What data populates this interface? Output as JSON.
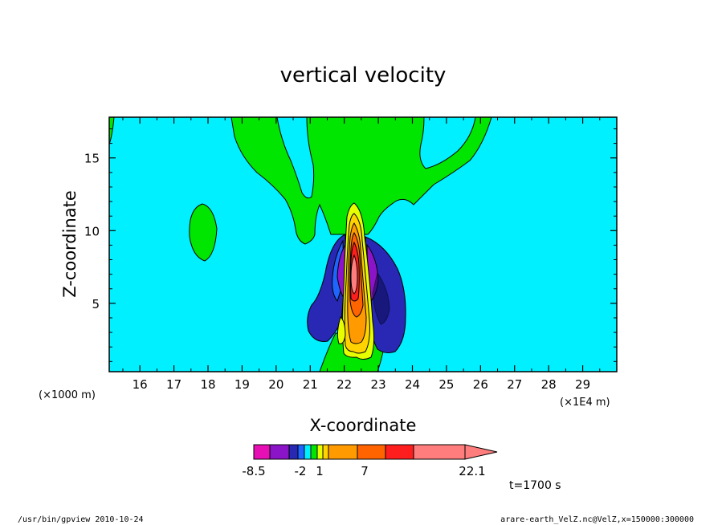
{
  "chart_data": {
    "type": "heatmap",
    "title": "vertical velocity",
    "xlabel": "X-coordinate",
    "ylabel": "Z-coordinate",
    "x_unit_left": "(×1000 m)",
    "x_unit_right": "(×1E4 m)",
    "xlim": [
      15.1,
      30.0
    ],
    "ylim": [
      0.3,
      17.8
    ],
    "x_ticks": [
      16,
      17,
      18,
      19,
      20,
      21,
      22,
      23,
      24,
      25,
      26,
      27,
      28,
      29
    ],
    "y_ticks": [
      5,
      10,
      15
    ],
    "colorbar": {
      "ticks": [
        "-8.5",
        "-2",
        "1",
        "7",
        "22.1"
      ],
      "colors": [
        "#e60fb4",
        "#8c14c8",
        "#2828b4",
        "#1e64ff",
        "#00f0ff",
        "#00e600",
        "#e6ff00",
        "#ffd200",
        "#ff9b00",
        "#ff6400",
        "#ff1e1e",
        "#ff7d7d"
      ]
    },
    "time_label": "t=1700 s",
    "grid": false,
    "legend": "bottom",
    "background_color": "#00f0ff"
  },
  "footer": {
    "left": "/usr/bin/gpview   2010-10-24",
    "right": "arare-earth_VelZ.nc@VelZ,x=150000:300000"
  }
}
